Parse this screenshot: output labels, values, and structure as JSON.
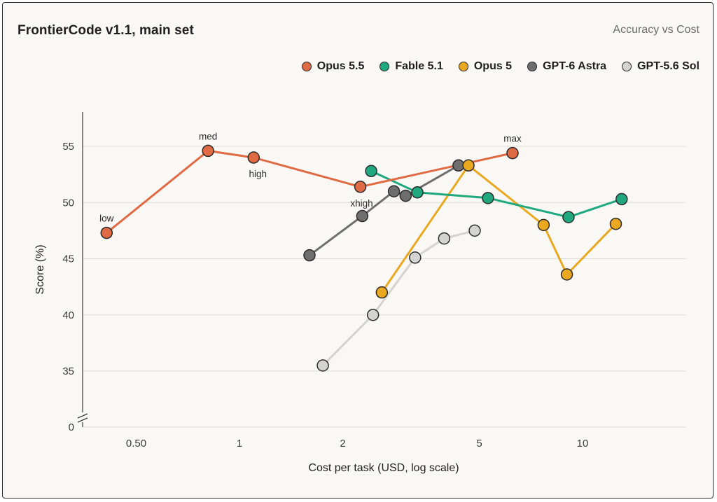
{
  "chart_data": {
    "type": "line",
    "title": "FrontierCode v1.1, main set",
    "subtitle": "Accuracy vs Cost",
    "xlabel": "Cost per task (USD, log scale)",
    "ylabel": "Score (%)",
    "x_scale": "log",
    "xlim": [
      0.3,
      20
    ],
    "ylim": [
      0,
      58
    ],
    "y_axis_break": true,
    "x_ticks": [
      0.5,
      1,
      2,
      5,
      10
    ],
    "x_tick_labels": [
      "0.50",
      "1",
      "2",
      "5",
      "10"
    ],
    "y_ticks": [
      0,
      35,
      40,
      45,
      50,
      55
    ],
    "y_tick_labels": [
      "0",
      "35",
      "40",
      "45",
      "50",
      "55"
    ],
    "grid": "horizontal",
    "legend_position": "top-right",
    "series": [
      {
        "name": "Opus 5.5",
        "color": "#e06a43",
        "points": [
          {
            "x": 0.41,
            "y": 47.3,
            "label": "low"
          },
          {
            "x": 0.81,
            "y": 54.6,
            "label": "med"
          },
          {
            "x": 1.1,
            "y": 54.0,
            "label": "high"
          },
          {
            "x": 2.25,
            "y": 51.4,
            "label": "xhigh"
          },
          {
            "x": 6.25,
            "y": 54.4,
            "label": "max"
          }
        ]
      },
      {
        "name": "Fable 5.1",
        "color": "#1fa77e",
        "points": [
          {
            "x": 2.42,
            "y": 52.8
          },
          {
            "x": 3.3,
            "y": 50.9
          },
          {
            "x": 5.3,
            "y": 50.4
          },
          {
            "x": 9.1,
            "y": 48.7
          },
          {
            "x": 13.0,
            "y": 50.3
          }
        ]
      },
      {
        "name": "Opus 5",
        "color": "#eaa821",
        "points": [
          {
            "x": 2.6,
            "y": 42.0
          },
          {
            "x": 4.65,
            "y": 53.3
          },
          {
            "x": 7.7,
            "y": 48.0
          },
          {
            "x": 9.0,
            "y": 43.6
          },
          {
            "x": 12.5,
            "y": 48.1
          }
        ]
      },
      {
        "name": "GPT-6 Astra",
        "color": "#6e6e6e",
        "points": [
          {
            "x": 1.6,
            "y": 45.3
          },
          {
            "x": 2.28,
            "y": 48.8
          },
          {
            "x": 2.82,
            "y": 51.0
          },
          {
            "x": 3.05,
            "y": 50.6
          },
          {
            "x": 4.35,
            "y": 53.3
          }
        ]
      },
      {
        "name": "GPT-5.6 Sol",
        "color": "#d3d3d0",
        "points": [
          {
            "x": 1.75,
            "y": 35.5
          },
          {
            "x": 2.45,
            "y": 40.0
          },
          {
            "x": 3.25,
            "y": 45.1
          },
          {
            "x": 3.95,
            "y": 46.8
          },
          {
            "x": 4.85,
            "y": 47.5
          }
        ]
      }
    ]
  }
}
